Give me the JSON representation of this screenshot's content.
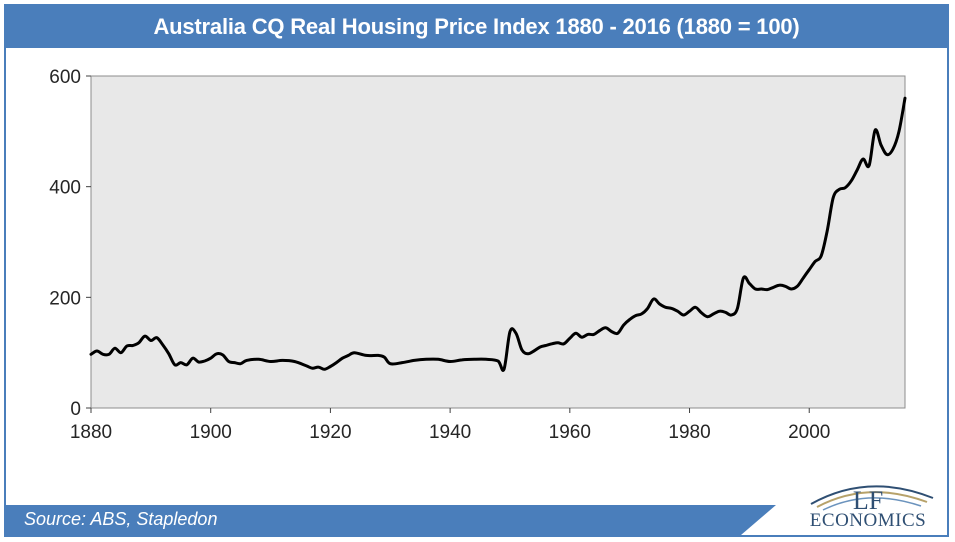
{
  "header": {
    "title": "Australia CQ Real Housing Price Index 1880  - 2016  (1880  = 100)"
  },
  "footer": {
    "source": "Source:  ABS, Stapledon"
  },
  "logo": {
    "line1": "LF",
    "line2": "ECONOMICS",
    "icon": "lf-economics-logo-icon"
  },
  "colors": {
    "header_bg": "#4a7ebb",
    "plot_bg": "#e8e8e8",
    "line": "#000000",
    "logo": "#2f4f73"
  },
  "chart_data": {
    "type": "line",
    "title": "Australia CQ Real Housing Price Index 1880  - 2016  (1880  = 100)",
    "xlabel": "",
    "ylabel": "",
    "xlim": [
      1880,
      2016
    ],
    "ylim": [
      0,
      600
    ],
    "x_ticks": [
      1880,
      1900,
      1920,
      1940,
      1960,
      1980,
      2000
    ],
    "y_ticks": [
      0,
      200,
      400,
      600
    ],
    "grid": false,
    "legend": "none",
    "series": [
      {
        "x": [
          1880,
          1881,
          1882,
          1883,
          1884,
          1885,
          1886,
          1887,
          1888,
          1889,
          1890,
          1891,
          1892,
          1893,
          1894,
          1895,
          1896,
          1897,
          1898,
          1899,
          1900,
          1901,
          1902,
          1903,
          1904,
          1905,
          1906,
          1908,
          1910,
          1912,
          1914,
          1916,
          1917,
          1918,
          1919,
          1920,
          1921,
          1922,
          1923,
          1924,
          1926,
          1928,
          1929,
          1930,
          1932,
          1934,
          1936,
          1938,
          1940,
          1942,
          1944,
          1946,
          1948,
          1949,
          1950,
          1951,
          1952,
          1953,
          1954,
          1955,
          1956,
          1957,
          1958,
          1959,
          1960,
          1961,
          1962,
          1963,
          1964,
          1965,
          1966,
          1967,
          1968,
          1969,
          1970,
          1971,
          1972,
          1973,
          1974,
          1975,
          1976,
          1977,
          1978,
          1979,
          1980,
          1981,
          1982,
          1983,
          1984,
          1985,
          1986,
          1987,
          1988,
          1989,
          1990,
          1991,
          1992,
          1993,
          1994,
          1995,
          1996,
          1997,
          1998,
          1999,
          2000,
          2001,
          2002,
          2003,
          2004,
          2005,
          2006,
          2007,
          2008,
          2009,
          2010,
          2011,
          2012,
          2013,
          2014,
          2015,
          2016
        ],
        "values": [
          97,
          103,
          97,
          97,
          108,
          100,
          112,
          113,
          118,
          130,
          122,
          127,
          114,
          98,
          78,
          82,
          78,
          90,
          83,
          85,
          90,
          98,
          96,
          84,
          82,
          80,
          86,
          88,
          84,
          86,
          84,
          76,
          72,
          74,
          70,
          75,
          82,
          90,
          95,
          100,
          95,
          95,
          92,
          80,
          82,
          86,
          88,
          88,
          84,
          87,
          88,
          88,
          85,
          70,
          138,
          135,
          105,
          98,
          103,
          110,
          113,
          116,
          118,
          116,
          126,
          135,
          128,
          133,
          133,
          140,
          145,
          138,
          135,
          150,
          160,
          167,
          170,
          180,
          197,
          188,
          182,
          180,
          175,
          168,
          175,
          182,
          172,
          165,
          170,
          175,
          173,
          168,
          180,
          235,
          225,
          215,
          215,
          214,
          218,
          222,
          220,
          215,
          220,
          235,
          250,
          265,
          275,
          320,
          380,
          395,
          398,
          410,
          430,
          450,
          438,
          502,
          475,
          458,
          468,
          500,
          560
        ]
      }
    ]
  }
}
